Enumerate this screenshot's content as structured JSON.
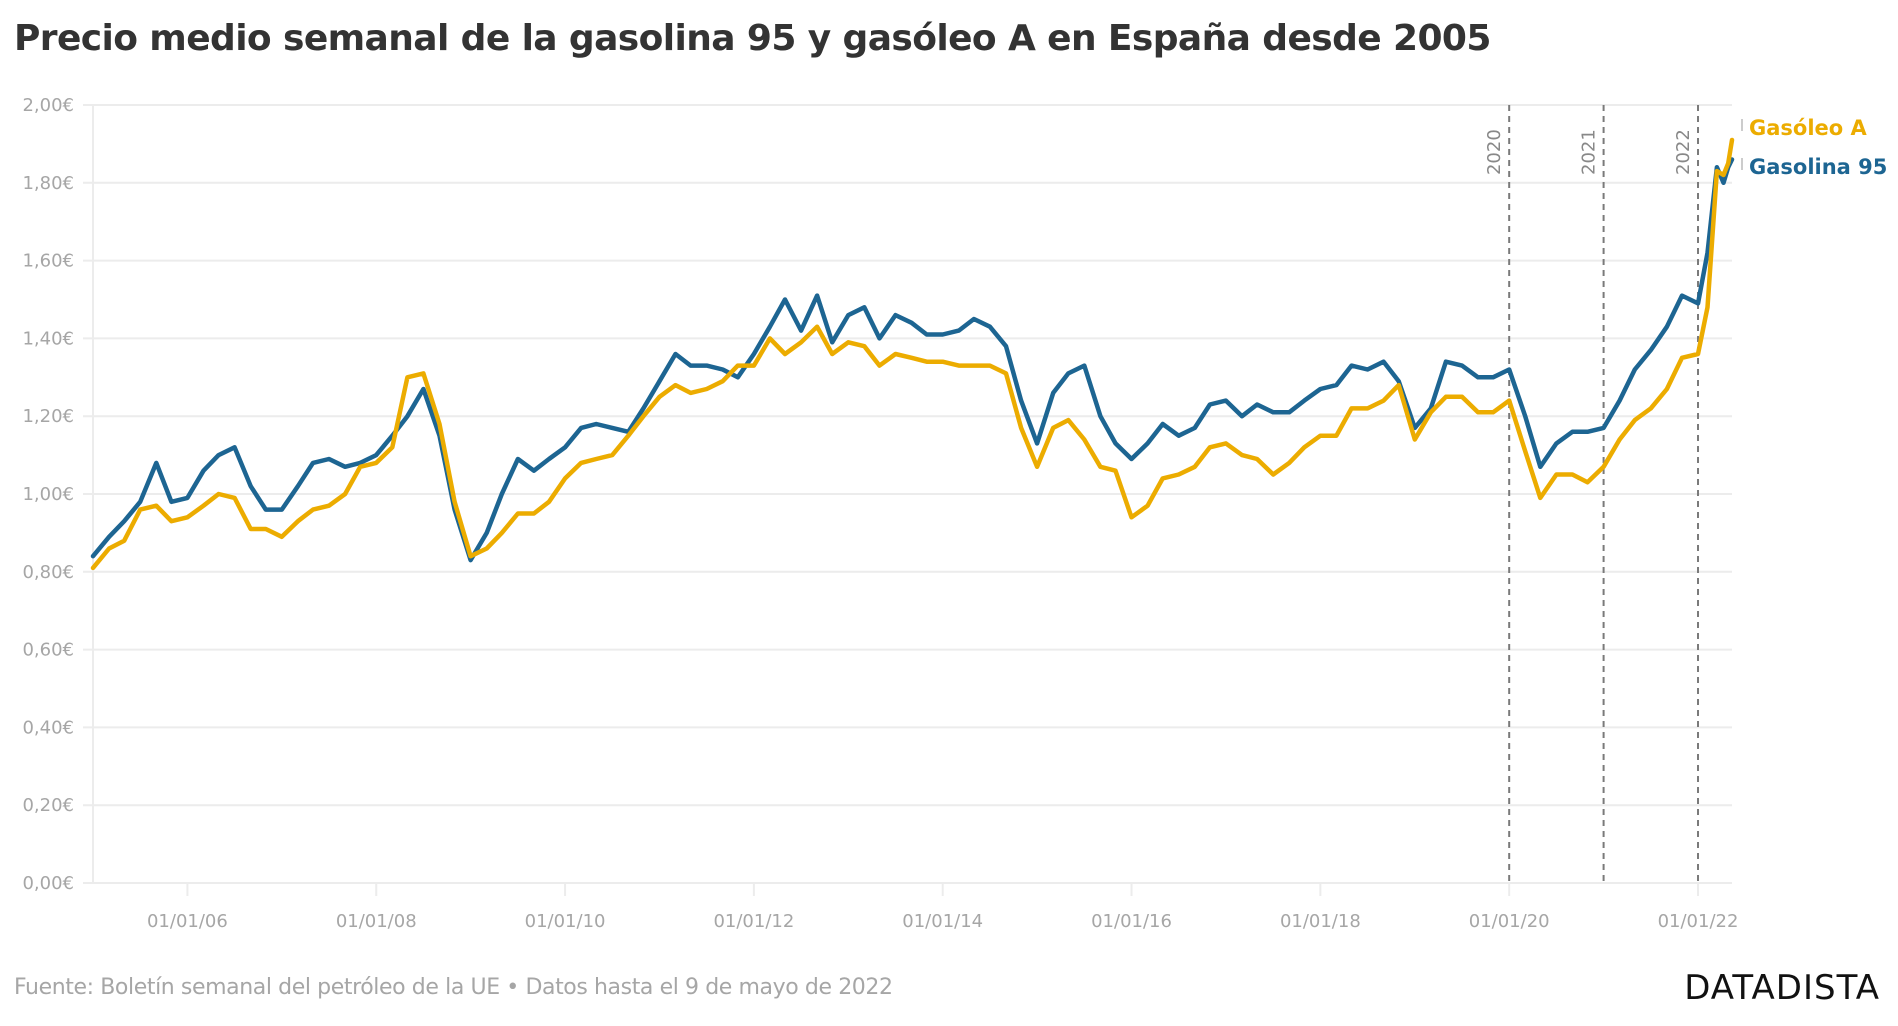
{
  "title": "Precio medio semanal de la gasolina 95 y gasóleo A en España desde 2005",
  "source": "Fuente: Boletín semanal del petróleo de la UE • Datos hasta el 9 de mayo de 2022",
  "brand": "DATADISTA",
  "chart_data": {
    "type": "line",
    "title": "Precio medio semanal de la gasolina 95 y gasóleo A en España desde 2005",
    "xlabel": "",
    "ylabel": "",
    "xlim": [
      2005.0,
      2022.36
    ],
    "ylim": [
      0,
      2
    ],
    "grid": true,
    "y_ticks": [
      {
        "value": 0.0,
        "label": "0,00€"
      },
      {
        "value": 0.2,
        "label": "0,20€"
      },
      {
        "value": 0.4,
        "label": "0,40€"
      },
      {
        "value": 0.6,
        "label": "0,60€"
      },
      {
        "value": 0.8,
        "label": "0,80€"
      },
      {
        "value": 1.0,
        "label": "1,00€"
      },
      {
        "value": 1.2,
        "label": "1,20€"
      },
      {
        "value": 1.4,
        "label": "1,40€"
      },
      {
        "value": 1.6,
        "label": "1,60€"
      },
      {
        "value": 1.8,
        "label": "1,80€"
      },
      {
        "value": 2.0,
        "label": "2,00€"
      }
    ],
    "x_ticks": [
      {
        "value": 2006,
        "label": "01/01/06"
      },
      {
        "value": 2008,
        "label": "01/01/08"
      },
      {
        "value": 2010,
        "label": "01/01/10"
      },
      {
        "value": 2012,
        "label": "01/01/12"
      },
      {
        "value": 2014,
        "label": "01/01/14"
      },
      {
        "value": 2016,
        "label": "01/01/16"
      },
      {
        "value": 2018,
        "label": "01/01/18"
      },
      {
        "value": 2020,
        "label": "01/01/20"
      },
      {
        "value": 2022,
        "label": "01/01/22"
      }
    ],
    "annotations": [
      {
        "x": 2020,
        "label": "2020",
        "style": "dashed-vertical"
      },
      {
        "x": 2021,
        "label": "2021",
        "style": "dashed-vertical"
      },
      {
        "x": 2022,
        "label": "2022",
        "style": "dashed-vertical"
      }
    ],
    "legend_position": "right-end-labels",
    "x": [
      2005.0,
      2005.17,
      2005.33,
      2005.5,
      2005.67,
      2005.83,
      2006.0,
      2006.17,
      2006.33,
      2006.5,
      2006.67,
      2006.83,
      2007.0,
      2007.17,
      2007.33,
      2007.5,
      2007.67,
      2007.83,
      2008.0,
      2008.17,
      2008.33,
      2008.5,
      2008.67,
      2008.83,
      2009.0,
      2009.17,
      2009.33,
      2009.5,
      2009.67,
      2009.83,
      2010.0,
      2010.17,
      2010.33,
      2010.5,
      2010.67,
      2010.83,
      2011.0,
      2011.17,
      2011.33,
      2011.5,
      2011.67,
      2011.83,
      2012.0,
      2012.17,
      2012.33,
      2012.5,
      2012.67,
      2012.83,
      2013.0,
      2013.17,
      2013.33,
      2013.5,
      2013.67,
      2013.83,
      2014.0,
      2014.17,
      2014.33,
      2014.5,
      2014.67,
      2014.83,
      2015.0,
      2015.17,
      2015.33,
      2015.5,
      2015.67,
      2015.83,
      2016.0,
      2016.17,
      2016.33,
      2016.5,
      2016.67,
      2016.83,
      2017.0,
      2017.17,
      2017.33,
      2017.5,
      2017.67,
      2017.83,
      2018.0,
      2018.17,
      2018.33,
      2018.5,
      2018.67,
      2018.83,
      2019.0,
      2019.17,
      2019.33,
      2019.5,
      2019.67,
      2019.83,
      2020.0,
      2020.17,
      2020.33,
      2020.5,
      2020.67,
      2020.83,
      2021.0,
      2021.17,
      2021.33,
      2021.5,
      2021.67,
      2021.83,
      2022.0,
      2022.1,
      2022.2,
      2022.27,
      2022.32,
      2022.36
    ],
    "series": [
      {
        "name": "Gasóleo A",
        "color": "#ecac00",
        "label": "Gasóleo A",
        "values": [
          0.81,
          0.86,
          0.88,
          0.96,
          0.97,
          0.93,
          0.94,
          0.97,
          1.0,
          0.99,
          0.91,
          0.91,
          0.89,
          0.93,
          0.96,
          0.97,
          1.0,
          1.07,
          1.08,
          1.12,
          1.3,
          1.31,
          1.18,
          0.98,
          0.84,
          0.86,
          0.9,
          0.95,
          0.95,
          0.98,
          1.04,
          1.08,
          1.09,
          1.1,
          1.15,
          1.2,
          1.25,
          1.28,
          1.26,
          1.27,
          1.29,
          1.33,
          1.33,
          1.4,
          1.36,
          1.39,
          1.43,
          1.36,
          1.39,
          1.38,
          1.33,
          1.36,
          1.35,
          1.34,
          1.34,
          1.33,
          1.33,
          1.33,
          1.31,
          1.17,
          1.07,
          1.17,
          1.19,
          1.14,
          1.07,
          1.06,
          0.94,
          0.97,
          1.04,
          1.05,
          1.07,
          1.12,
          1.13,
          1.1,
          1.09,
          1.05,
          1.08,
          1.12,
          1.15,
          1.15,
          1.22,
          1.22,
          1.24,
          1.28,
          1.14,
          1.21,
          1.25,
          1.25,
          1.21,
          1.21,
          1.24,
          1.11,
          0.99,
          1.05,
          1.05,
          1.03,
          1.07,
          1.14,
          1.19,
          1.22,
          1.27,
          1.35,
          1.36,
          1.48,
          1.83,
          1.82,
          1.85,
          1.91
        ]
      },
      {
        "name": "Gasolina 95",
        "color": "#1d6592",
        "label": "Gasolina 95",
        "values": [
          0.84,
          0.89,
          0.93,
          0.98,
          1.08,
          0.98,
          0.99,
          1.06,
          1.1,
          1.12,
          1.02,
          0.96,
          0.96,
          1.02,
          1.08,
          1.09,
          1.07,
          1.08,
          1.1,
          1.15,
          1.2,
          1.27,
          1.15,
          0.96,
          0.83,
          0.9,
          1.0,
          1.09,
          1.06,
          1.09,
          1.12,
          1.17,
          1.18,
          1.17,
          1.16,
          1.22,
          1.29,
          1.36,
          1.33,
          1.33,
          1.32,
          1.3,
          1.36,
          1.43,
          1.5,
          1.42,
          1.51,
          1.39,
          1.46,
          1.48,
          1.4,
          1.46,
          1.44,
          1.41,
          1.41,
          1.42,
          1.45,
          1.43,
          1.38,
          1.24,
          1.13,
          1.26,
          1.31,
          1.33,
          1.2,
          1.13,
          1.09,
          1.13,
          1.18,
          1.15,
          1.17,
          1.23,
          1.24,
          1.2,
          1.23,
          1.21,
          1.21,
          1.24,
          1.27,
          1.28,
          1.33,
          1.32,
          1.34,
          1.29,
          1.17,
          1.22,
          1.34,
          1.33,
          1.3,
          1.3,
          1.32,
          1.2,
          1.07,
          1.13,
          1.16,
          1.16,
          1.17,
          1.24,
          1.32,
          1.37,
          1.43,
          1.51,
          1.49,
          1.62,
          1.84,
          1.8,
          1.84,
          1.86
        ]
      }
    ]
  }
}
